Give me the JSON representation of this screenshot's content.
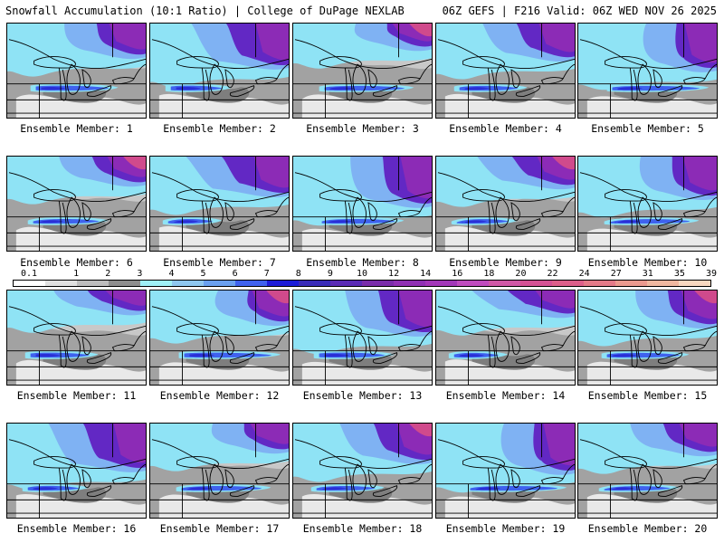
{
  "header": {
    "title_left": "Snowfall Accumulation (10:1 Ratio) | College of DuPage NEXLAB",
    "title_right": "06Z GEFS | F216 Valid: 06Z WED NOV 26 2025"
  },
  "colors": {
    "none": "#e9e9e9",
    "light_gray": "#c8c8c8",
    "gray": "#a2a2a2",
    "dark_gray": "#7e7e7e",
    "cyan": "#8fe3f5",
    "light_blue": "#7fb2f3",
    "blue": "#3f62ee",
    "deep_blue": "#2a2fd6",
    "purple": "#6228c4",
    "violet": "#8c2bb6",
    "magenta": "#b73fa8",
    "pink": "#d04a8c"
  },
  "legend": {
    "labels": [
      "0.1",
      "1",
      "2",
      "3",
      "4",
      "5",
      "6",
      "7",
      "8",
      "9",
      "10",
      "12",
      "14",
      "16",
      "18",
      "20",
      "22",
      "24",
      "27",
      "31",
      "35",
      "39"
    ],
    "colors": [
      "#ffffff",
      "#e0e0e0",
      "#bdbdbd",
      "#8e8e8e",
      "#9ff0f6",
      "#8fc7f0",
      "#6aa0f0",
      "#3f62ee",
      "#1c1cd8",
      "#3a2ab8",
      "#5b2ab5",
      "#7a2caa",
      "#9030b4",
      "#a336b8",
      "#c04bbe",
      "#d058a6",
      "#d45294",
      "#dd5f8a",
      "#e47a88",
      "#eb9a8f",
      "#f0b8a0",
      "#f8d8c0"
    ]
  },
  "members": [
    {
      "label": "Ensemble Member: 1"
    },
    {
      "label": "Ensemble Member: 2"
    },
    {
      "label": "Ensemble Member: 3"
    },
    {
      "label": "Ensemble Member: 4"
    },
    {
      "label": "Ensemble Member: 5"
    },
    {
      "label": "Ensemble Member: 6"
    },
    {
      "label": "Ensemble Member: 7"
    },
    {
      "label": "Ensemble Member: 8"
    },
    {
      "label": "Ensemble Member: 9"
    },
    {
      "label": "Ensemble Member: 10"
    },
    {
      "label": "Ensemble Member: 11"
    },
    {
      "label": "Ensemble Member: 12"
    },
    {
      "label": "Ensemble Member: 13"
    },
    {
      "label": "Ensemble Member: 14"
    },
    {
      "label": "Ensemble Member: 15"
    },
    {
      "label": "Ensemble Member: 16"
    },
    {
      "label": "Ensemble Member: 17"
    },
    {
      "label": "Ensemble Member: 18"
    },
    {
      "label": "Ensemble Member: 19"
    },
    {
      "label": "Ensemble Member: 20"
    }
  ]
}
